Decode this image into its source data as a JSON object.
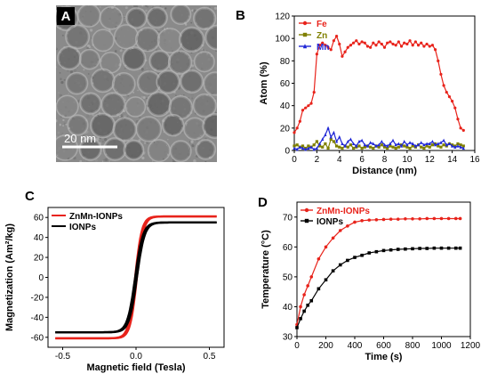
{
  "panels": {
    "A": {
      "letter": "A",
      "scalebar_label": "20 nm"
    },
    "B": {
      "letter": "B"
    },
    "C": {
      "letter": "C"
    },
    "D": {
      "letter": "D"
    }
  },
  "chart_data": [
    {
      "id": "B",
      "type": "line",
      "xlabel": "Distance (nm)",
      "ylabel": "Atom (%)",
      "xlim": [
        0,
        16
      ],
      "ylim": [
        0,
        120
      ],
      "xticks": [
        0,
        2,
        4,
        6,
        8,
        10,
        12,
        14,
        16
      ],
      "yticks": [
        0,
        20,
        40,
        60,
        80,
        100,
        120
      ],
      "legend_position": "top-left",
      "series": [
        {
          "name": "Fe",
          "color": "#e8231b",
          "marker": "circle",
          "x": [
            0.0,
            0.25,
            0.5,
            0.75,
            1.0,
            1.25,
            1.5,
            1.75,
            2.0,
            2.25,
            2.5,
            2.75,
            3.0,
            3.25,
            3.5,
            3.75,
            4.0,
            4.25,
            4.5,
            4.75,
            5.0,
            5.25,
            5.5,
            5.75,
            6.0,
            6.25,
            6.5,
            6.75,
            7.0,
            7.25,
            7.5,
            7.75,
            8.0,
            8.25,
            8.5,
            8.75,
            9.0,
            9.25,
            9.5,
            9.75,
            10.0,
            10.25,
            10.5,
            10.75,
            11.0,
            11.25,
            11.5,
            11.75,
            12.0,
            12.25,
            12.5,
            12.75,
            13.0,
            13.25,
            13.5,
            13.75,
            14.0,
            14.25,
            14.5,
            14.75,
            15.0
          ],
          "y": [
            16,
            20,
            26,
            36,
            38,
            40,
            42,
            52,
            86,
            94,
            96,
            94,
            92,
            90,
            98,
            102,
            95,
            84,
            88,
            92,
            94,
            96,
            98,
            95,
            97,
            96,
            93,
            92,
            96,
            94,
            97,
            95,
            92,
            96,
            97,
            95,
            94,
            97,
            93,
            96,
            95,
            98,
            94,
            97,
            94,
            96,
            93,
            95,
            93,
            94,
            90,
            80,
            68,
            58,
            52,
            48,
            44,
            38,
            28,
            20,
            18
          ]
        },
        {
          "name": "Zn",
          "color": "#808000",
          "marker": "square",
          "x": [
            0.0,
            0.25,
            0.5,
            0.75,
            1.0,
            1.25,
            1.5,
            1.75,
            2.0,
            2.25,
            2.5,
            2.75,
            3.0,
            3.25,
            3.5,
            3.75,
            4.0,
            4.25,
            4.5,
            4.75,
            5.0,
            5.25,
            5.5,
            5.75,
            6.0,
            6.25,
            6.5,
            6.75,
            7.0,
            7.25,
            7.5,
            7.75,
            8.0,
            8.25,
            8.5,
            8.75,
            9.0,
            9.25,
            9.5,
            9.75,
            10.0,
            10.25,
            10.5,
            10.75,
            11.0,
            11.25,
            11.5,
            11.75,
            12.0,
            12.25,
            12.5,
            12.75,
            13.0,
            13.25,
            13.5,
            13.75,
            14.0,
            14.25,
            14.5,
            14.75,
            15.0
          ],
          "y": [
            4,
            5,
            3,
            4,
            2,
            4,
            3,
            5,
            8,
            4,
            3,
            6,
            2,
            10,
            8,
            4,
            3,
            2,
            4,
            3,
            5,
            2,
            3,
            4,
            2,
            3,
            4,
            3,
            2,
            4,
            3,
            5,
            3,
            2,
            4,
            3,
            2,
            3,
            5,
            4,
            3,
            2,
            4,
            3,
            5,
            3,
            2,
            4,
            3,
            5,
            6,
            4,
            3,
            5,
            4,
            6,
            5,
            4,
            6,
            5,
            4
          ]
        },
        {
          "name": "Mn",
          "color": "#1f26d6",
          "marker": "triangle",
          "x": [
            0.0,
            0.25,
            0.5,
            0.75,
            1.0,
            1.25,
            1.5,
            1.75,
            2.0,
            2.25,
            2.5,
            2.75,
            3.0,
            3.25,
            3.5,
            3.75,
            4.0,
            4.25,
            4.5,
            4.75,
            5.0,
            5.25,
            5.5,
            5.75,
            6.0,
            6.25,
            6.5,
            6.75,
            7.0,
            7.25,
            7.5,
            7.75,
            8.0,
            8.25,
            8.5,
            8.75,
            9.0,
            9.25,
            9.5,
            9.75,
            10.0,
            10.25,
            10.5,
            10.75,
            11.0,
            11.25,
            11.5,
            11.75,
            12.0,
            12.25,
            12.5,
            12.75,
            13.0,
            13.25,
            13.5,
            13.75,
            14.0,
            14.25,
            14.5,
            14.75,
            15.0
          ],
          "y": [
            2,
            1,
            3,
            2,
            1,
            2,
            3,
            1,
            2,
            6,
            10,
            14,
            20,
            12,
            16,
            8,
            12,
            6,
            4,
            8,
            10,
            6,
            4,
            8,
            9,
            5,
            4,
            7,
            6,
            4,
            5,
            8,
            5,
            4,
            6,
            9,
            5,
            6,
            4,
            8,
            5,
            7,
            6,
            4,
            5,
            7,
            5,
            6,
            6,
            8,
            5,
            6,
            7,
            9,
            5,
            6,
            4,
            3,
            4,
            3,
            2
          ]
        }
      ]
    },
    {
      "id": "C",
      "type": "line",
      "xlabel": "Magnetic field (Tesla)",
      "ylabel": "Magnetization (Am²/kg)",
      "xlim": [
        -0.6,
        0.6
      ],
      "ylim": [
        -70,
        70
      ],
      "xticks": [
        -0.5,
        0.0,
        0.5
      ],
      "xticklabels": [
        "-0.5",
        "0.0",
        "0.5"
      ],
      "yticks": [
        -60,
        -40,
        -20,
        0,
        20,
        40,
        60
      ],
      "legend_position": "top-left",
      "series": [
        {
          "name": "ZnMn-IONPs",
          "color": "#e8231b",
          "Ms": 61,
          "xrange": [
            -0.55,
            0.55
          ]
        },
        {
          "name": "IONPs",
          "color": "#000000",
          "Ms": 55,
          "xrange": [
            -0.55,
            0.55
          ]
        }
      ]
    },
    {
      "id": "D",
      "type": "line",
      "xlabel": "Time (s)",
      "ylabel": "Temperature (°C)",
      "xlim": [
        0,
        1200
      ],
      "ylim": [
        30,
        75
      ],
      "xticks": [
        0,
        200,
        400,
        600,
        800,
        1000,
        1200
      ],
      "yticks": [
        30,
        40,
        50,
        60,
        70
      ],
      "legend_position": "top-left",
      "series": [
        {
          "name": "ZnMn-IONPs",
          "color": "#e8231b",
          "marker": "circle",
          "x": [
            0,
            25,
            50,
            75,
            100,
            150,
            200,
            250,
            300,
            350,
            400,
            450,
            500,
            550,
            600,
            650,
            700,
            750,
            800,
            850,
            900,
            950,
            1000,
            1050,
            1100,
            1130
          ],
          "y": [
            34,
            40,
            44,
            47,
            50,
            56,
            60,
            63,
            65.5,
            67,
            68.3,
            68.8,
            69,
            69.1,
            69.2,
            69.3,
            69.3,
            69.4,
            69.4,
            69.4,
            69.5,
            69.5,
            69.5,
            69.5,
            69.5,
            69.5
          ]
        },
        {
          "name": "IONPs",
          "color": "#000000",
          "marker": "square",
          "x": [
            0,
            25,
            50,
            75,
            100,
            150,
            200,
            250,
            300,
            350,
            400,
            450,
            500,
            550,
            600,
            650,
            700,
            750,
            800,
            850,
            900,
            950,
            1000,
            1050,
            1100,
            1130
          ],
          "y": [
            33,
            36,
            38.5,
            40.5,
            42,
            46,
            49,
            52,
            54,
            55.5,
            56.5,
            57.2,
            58,
            58.4,
            58.8,
            59,
            59.2,
            59.3,
            59.4,
            59.5,
            59.5,
            59.6,
            59.6,
            59.6,
            59.6,
            59.6
          ]
        }
      ]
    }
  ]
}
